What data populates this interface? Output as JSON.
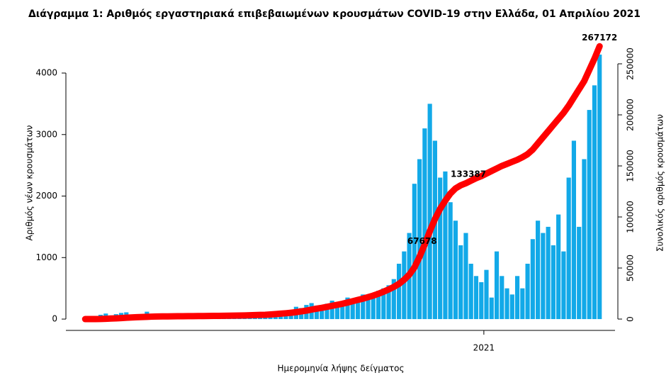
{
  "chart_data": {
    "type": "bar-line",
    "title": "Διάγραμμα 1: Αριθμός εργαστηριακά επιβεβαιωμένων κρουσμάτων COVID-19 στην Ελλάδα, 01 Απριλίου 2021",
    "xlabel": "Ημερομηνία λήψης δείγματος",
    "ylabel": "Αριθμός νέων κρουσμάτων",
    "y2label": "Συνολικός αριθμός κρουσμάτων",
    "x": [
      0,
      4,
      8,
      12,
      16,
      20,
      24,
      28,
      32,
      36,
      40,
      44,
      48,
      52,
      56,
      60,
      64,
      68,
      72,
      76,
      80,
      84,
      88,
      92,
      96,
      100,
      104,
      108,
      112,
      116,
      120,
      124,
      128,
      132,
      136,
      140,
      144,
      148,
      152,
      156,
      160,
      164,
      168,
      172,
      176,
      180,
      184,
      188,
      192,
      196,
      200,
      204,
      208,
      212,
      216,
      220,
      224,
      228,
      232,
      236,
      240,
      244,
      248,
      252,
      256,
      260,
      264,
      268,
      272,
      276,
      280,
      284,
      288,
      292,
      296,
      300,
      304,
      308,
      312,
      316,
      320,
      324,
      328,
      332,
      336,
      340,
      344,
      348,
      352,
      356,
      360,
      364,
      368,
      372,
      376,
      380,
      384,
      388,
      392,
      396,
      400
    ],
    "series": [
      {
        "type": "bar",
        "color": "#12a9e8",
        "values": [
          2,
          10,
          30,
          70,
          90,
          60,
          80,
          100,
          110,
          60,
          70,
          80,
          120,
          60,
          40,
          30,
          20,
          30,
          15,
          20,
          10,
          15,
          10,
          20,
          15,
          10,
          20,
          15,
          20,
          30,
          25,
          20,
          35,
          30,
          40,
          25,
          50,
          80,
          110,
          90,
          150,
          200,
          180,
          230,
          260,
          220,
          200,
          250,
          300,
          250,
          220,
          350,
          330,
          280,
          400,
          350,
          420,
          460,
          500,
          550,
          650,
          900,
          1100,
          1400,
          2200,
          2600,
          3100,
          3500,
          2900,
          2300,
          2400,
          1900,
          1600,
          1200,
          1400,
          900,
          700,
          600,
          800,
          350,
          1100,
          700,
          500,
          400,
          700,
          500,
          900,
          1300,
          1600,
          1400,
          1500,
          1200,
          1700,
          1100,
          2300,
          2900,
          1500,
          2600,
          3400,
          3800,
          4300
        ]
      },
      {
        "type": "line",
        "axis": "y2",
        "color": "#ff0000",
        "values": [
          3,
          7,
          45,
          100,
          300,
          500,
          700,
          1000,
          1300,
          1600,
          1800,
          2000,
          2200,
          2400,
          2500,
          2600,
          2650,
          2700,
          2750,
          2800,
          2850,
          2900,
          2950,
          3000,
          3050,
          3100,
          3150,
          3200,
          3300,
          3400,
          3500,
          3600,
          3750,
          3900,
          4050,
          4200,
          4500,
          4900,
          5300,
          5700,
          6200,
          6800,
          7500,
          8300,
          9300,
          10200,
          11000,
          12000,
          13000,
          14000,
          15000,
          16200,
          17500,
          18800,
          20000,
          21500,
          23000,
          24800,
          26800,
          29000,
          31500,
          34500,
          38500,
          43500,
          50500,
          61000,
          73000,
          86000,
          98000,
          108000,
          116000,
          123000,
          128000,
          131000,
          133000,
          135500,
          138000,
          140000,
          142500,
          145000,
          147500,
          150000,
          152000,
          154000,
          156000,
          158500,
          161500,
          166000,
          172000,
          178000,
          184000,
          190000,
          196000,
          202000,
          209000,
          217000,
          225000,
          233000,
          244000,
          255000,
          267172
        ]
      }
    ],
    "annotations": [
      {
        "text": "67678",
        "x": 262,
        "y": 67678
      },
      {
        "text": "133387",
        "x": 298,
        "y": 133387
      },
      {
        "text": "267172",
        "x": 400,
        "y": 267172
      }
    ],
    "xlim": [
      -15,
      412
    ],
    "xticks": [
      {
        "value": 310,
        "label": "2021"
      }
    ],
    "ylim": [
      -184,
      4784
    ],
    "yticks": [
      0,
      1000,
      2000,
      3000,
      4000
    ],
    "y2lim": [
      -11100,
      288200
    ],
    "y2ticks": [
      0,
      50000,
      100000,
      150000,
      200000,
      250000
    ]
  }
}
